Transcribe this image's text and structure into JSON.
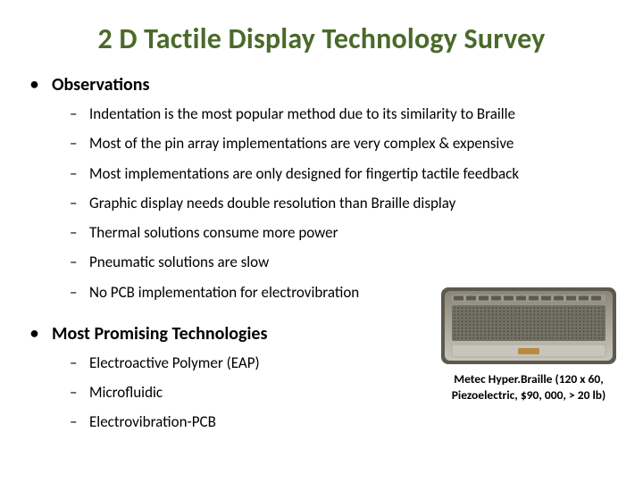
{
  "title": "2 D Tactile Display Technology Survey",
  "title_color": "#4a6a2a",
  "sections": [
    {
      "header": "Observations",
      "items": [
        "Indentation is the most popular method due to its similarity to Braille",
        "Most of the pin array implementations are very complex & expensive",
        "Most implementations are only designed for fingertip tactile feedback",
        "Graphic display needs double resolution than Braille display",
        "Thermal solutions consume more power",
        "Pneumatic solutions are slow",
        "No PCB implementation for electrovibration"
      ]
    },
    {
      "header": "Most Promising Technologies",
      "items": [
        "Electroactive Polymer (EAP)",
        "Microfluidic",
        "Electrovibration-PCB"
      ]
    }
  ],
  "caption_line1": "Metec Hyper.Braille (120 x 60,",
  "caption_line2": "Piezoelectric, $90, 000, > 20 lb)",
  "device_colors": {
    "body_top": "#8a8778",
    "body_bottom": "#c8c6bc",
    "frame": "#5c594e",
    "pin_area": "#726f63",
    "pin_dot": "#3a3830",
    "button_row": "#9b998c",
    "accent": "#b88a3e"
  }
}
